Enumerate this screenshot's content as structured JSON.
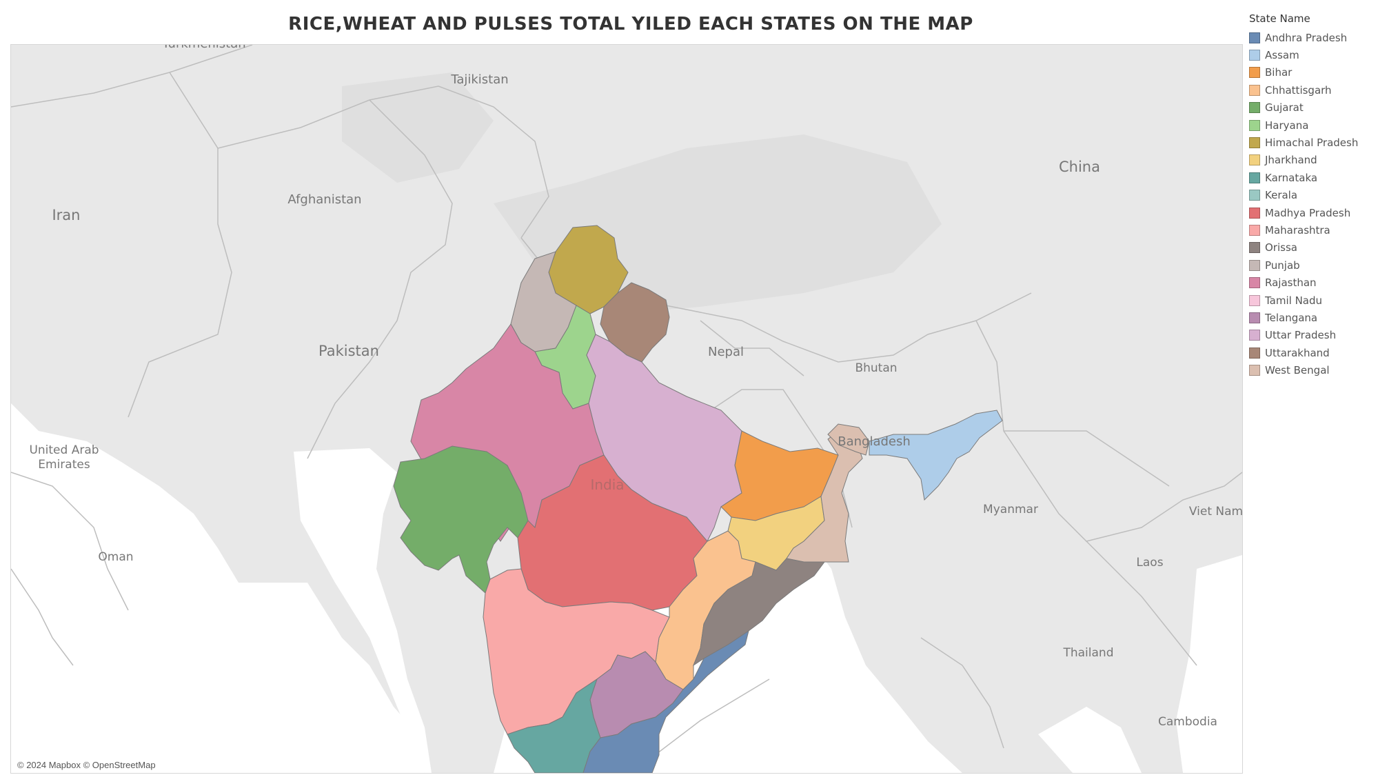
{
  "title": "RICE,WHEAT AND PULSES TOTAL YILED EACH STATES ON THE MAP",
  "attribution": "© 2024 Mapbox © OpenStreetMap",
  "country_labels": [
    "Turkmenistan",
    "Tajikistan",
    "Afghanistan",
    "Iran",
    "Pakistan",
    "China",
    "Nepal",
    "Bhutan",
    "Bangladesh",
    "United Arab",
    "Emirates",
    "Oman",
    "India",
    "Myanmar",
    "Viet Nam",
    "Laos",
    "Thailand",
    "Cambodia"
  ],
  "legend": {
    "title": "State Name",
    "items": [
      {
        "name": "Andhra Pradesh",
        "color": "#6a8bb4"
      },
      {
        "name": "Assam",
        "color": "#aecde9"
      },
      {
        "name": "Bihar",
        "color": "#f29d4b"
      },
      {
        "name": "Chhattisgarh",
        "color": "#fac28f"
      },
      {
        "name": "Gujarat",
        "color": "#74ad69"
      },
      {
        "name": "Haryana",
        "color": "#9dd48d"
      },
      {
        "name": "Himachal Pradesh",
        "color": "#c1a84d"
      },
      {
        "name": "Jharkhand",
        "color": "#f2d17f"
      },
      {
        "name": "Karnataka",
        "color": "#66a7a1"
      },
      {
        "name": "Kerala",
        "color": "#9ac8c3"
      },
      {
        "name": "Madhya Pradesh",
        "color": "#e27073"
      },
      {
        "name": "Maharashtra",
        "color": "#f9a9a8"
      },
      {
        "name": "Orissa",
        "color": "#8e8380"
      },
      {
        "name": "Punjab",
        "color": "#c5b8b5"
      },
      {
        "name": "Rajasthan",
        "color": "#d886a6"
      },
      {
        "name": "Tamil Nadu",
        "color": "#f7c6db"
      },
      {
        "name": "Telangana",
        "color": "#b88cb0"
      },
      {
        "name": "Uttar Pradesh",
        "color": "#d7b0d0"
      },
      {
        "name": "Uttarakhand",
        "color": "#a88777"
      },
      {
        "name": "West Bengal",
        "color": "#dbbfb0"
      }
    ]
  }
}
